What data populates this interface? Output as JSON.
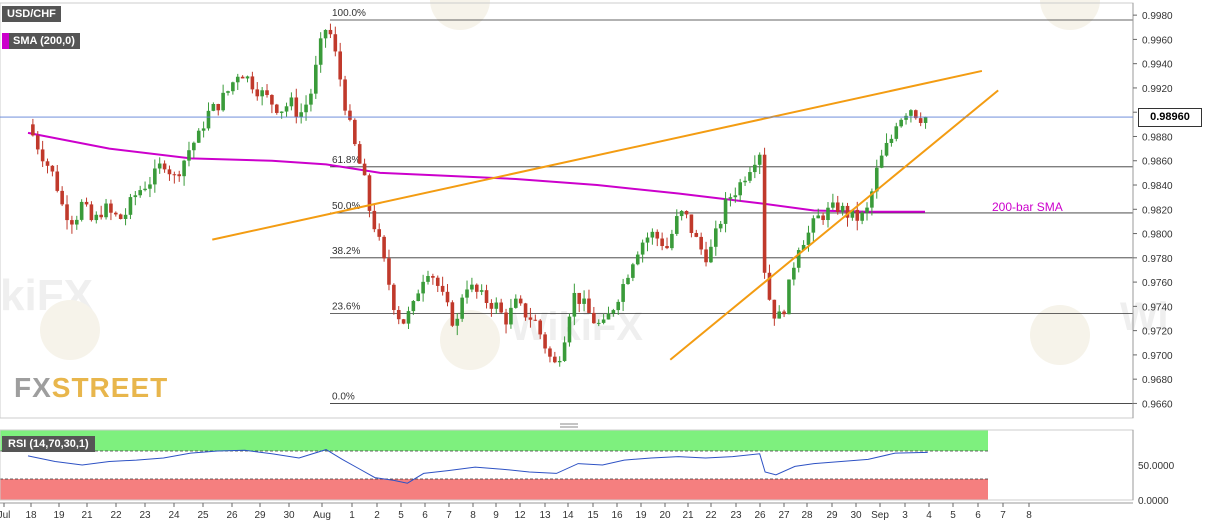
{
  "chart_data": {
    "type": "candlestick",
    "symbol": "USD/CHF",
    "indicator_label": "SMA (200,0)",
    "rsi_label": "RSI (14,70,30,1)",
    "current_price": "0.98960",
    "price_axis": {
      "ticks": [
        "0.9980",
        "0.9960",
        "0.9940",
        "0.9920",
        "0.9900",
        "0.9880",
        "0.9860",
        "0.9840",
        "0.9820",
        "0.9800",
        "0.9780",
        "0.9760",
        "0.9740",
        "0.9720",
        "0.9700",
        "0.9680",
        "0.9660"
      ],
      "ylim": [
        0.9648,
        0.999
      ]
    },
    "rsi_axis": {
      "ticks": [
        "50.0000",
        "0.0000"
      ],
      "ylim": [
        0,
        100
      ],
      "upper": 70,
      "lower": 30
    },
    "x_ticks": [
      "Jul",
      "18",
      "19",
      "21",
      "22",
      "23",
      "24",
      "25",
      "26",
      "29",
      "30",
      "Aug",
      "1",
      "2",
      "5",
      "6",
      "7",
      "8",
      "9",
      "12",
      "13",
      "14",
      "15",
      "16",
      "19",
      "20",
      "21",
      "22",
      "23",
      "26",
      "27",
      "28",
      "29",
      "30",
      "Sep",
      "3",
      "4",
      "5",
      "6",
      "7",
      "8"
    ],
    "fibonacci": [
      {
        "label": "100.0%",
        "price": 0.9976
      },
      {
        "label": "61.8%",
        "price": 0.9855
      },
      {
        "label": "50.0%",
        "price": 0.9817
      },
      {
        "label": "38.2%",
        "price": 0.978
      },
      {
        "label": "23.6%",
        "price": 0.9734
      },
      {
        "label": "0.0%",
        "price": 0.966
      }
    ],
    "trendlines": [
      {
        "name": "upper",
        "x1": 6.8,
        "y1": 0.9795,
        "x2": 35.2,
        "y2": 0.9934
      },
      {
        "name": "lower",
        "x1": 23.7,
        "y1": 0.9696,
        "x2": 35.8,
        "y2": 0.9918
      }
    ],
    "annotations": [
      "200-bar SMA"
    ],
    "close_path": [
      [
        0.0,
        0.989
      ],
      [
        0.3,
        0.9875
      ],
      [
        0.6,
        0.9862
      ],
      [
        1.0,
        0.9845
      ],
      [
        1.3,
        0.982
      ],
      [
        1.7,
        0.981
      ],
      [
        2.0,
        0.9825
      ],
      [
        2.4,
        0.9808
      ],
      [
        2.8,
        0.9822
      ],
      [
        3.1,
        0.9815
      ],
      [
        3.5,
        0.9812
      ],
      [
        3.9,
        0.983
      ],
      [
        4.2,
        0.9838
      ],
      [
        4.6,
        0.9845
      ],
      [
        5.0,
        0.986
      ],
      [
        5.4,
        0.9846
      ],
      [
        5.7,
        0.9858
      ],
      [
        6.0,
        0.9872
      ],
      [
        6.3,
        0.988
      ],
      [
        6.6,
        0.9898
      ],
      [
        7.0,
        0.9906
      ],
      [
        7.4,
        0.9918
      ],
      [
        7.8,
        0.9935
      ],
      [
        8.1,
        0.9928
      ],
      [
        8.5,
        0.9918
      ],
      [
        8.9,
        0.991
      ],
      [
        9.3,
        0.9902
      ],
      [
        9.7,
        0.9908
      ],
      [
        10.0,
        0.9897
      ],
      [
        10.4,
        0.9912
      ],
      [
        10.8,
        0.9955
      ],
      [
        11.0,
        0.997
      ],
      [
        11.2,
        0.9962
      ],
      [
        11.5,
        0.993
      ],
      [
        11.8,
        0.9895
      ],
      [
        12.1,
        0.9868
      ],
      [
        12.4,
        0.9845
      ],
      [
        12.6,
        0.982
      ],
      [
        12.9,
        0.9798
      ],
      [
        13.2,
        0.977
      ],
      [
        13.5,
        0.9742
      ],
      [
        13.8,
        0.9726
      ],
      [
        14.2,
        0.9738
      ],
      [
        14.5,
        0.9762
      ],
      [
        14.8,
        0.9772
      ],
      [
        15.1,
        0.9758
      ],
      [
        15.4,
        0.9742
      ],
      [
        15.8,
        0.9722
      ],
      [
        16.1,
        0.976
      ],
      [
        16.5,
        0.9752
      ],
      [
        16.9,
        0.9745
      ],
      [
        17.3,
        0.974
      ],
      [
        17.6,
        0.9728
      ],
      [
        18.0,
        0.9742
      ],
      [
        18.3,
        0.9735
      ],
      [
        18.7,
        0.9728
      ],
      [
        19.0,
        0.9712
      ],
      [
        19.4,
        0.969
      ],
      [
        19.7,
        0.9705
      ],
      [
        20.1,
        0.975
      ],
      [
        20.4,
        0.9745
      ],
      [
        20.8,
        0.973
      ],
      [
        21.2,
        0.9722
      ],
      [
        21.6,
        0.974
      ],
      [
        22.0,
        0.976
      ],
      [
        22.3,
        0.9778
      ],
      [
        22.6,
        0.9792
      ],
      [
        23.0,
        0.98
      ],
      [
        23.3,
        0.9795
      ],
      [
        23.6,
        0.9788
      ],
      [
        23.9,
        0.981
      ],
      [
        24.2,
        0.9818
      ],
      [
        24.5,
        0.9802
      ],
      [
        24.8,
        0.9788
      ],
      [
        25.1,
        0.978
      ],
      [
        25.4,
        0.98
      ],
      [
        25.8,
        0.9828
      ],
      [
        26.2,
        0.9838
      ],
      [
        26.5,
        0.985
      ],
      [
        26.8,
        0.9862
      ],
      [
        27.0,
        0.9868
      ],
      [
        27.2,
        0.976
      ],
      [
        27.5,
        0.9735
      ],
      [
        27.8,
        0.973
      ],
      [
        28.1,
        0.9758
      ],
      [
        28.4,
        0.979
      ],
      [
        28.8,
        0.98
      ],
      [
        29.1,
        0.9812
      ],
      [
        29.5,
        0.9818
      ],
      [
        29.9,
        0.9822
      ],
      [
        30.3,
        0.9815
      ],
      [
        30.7,
        0.9812
      ],
      [
        31.0,
        0.982
      ],
      [
        31.3,
        0.985
      ],
      [
        31.6,
        0.9868
      ],
      [
        31.9,
        0.988
      ],
      [
        32.1,
        0.9898
      ],
      [
        32.3,
        0.9896
      ],
      [
        32.5,
        0.9906
      ],
      [
        32.7,
        0.99
      ],
      [
        33.0,
        0.9895
      ],
      [
        33.2,
        0.9896
      ]
    ],
    "sma_path": [
      [
        0.0,
        0.9883
      ],
      [
        3.0,
        0.987
      ],
      [
        6.0,
        0.9862
      ],
      [
        9.0,
        0.986
      ],
      [
        11.0,
        0.9857
      ],
      [
        13.0,
        0.985
      ],
      [
        15.0,
        0.9848
      ],
      [
        18.0,
        0.9845
      ],
      [
        21.0,
        0.984
      ],
      [
        24.0,
        0.9833
      ],
      [
        27.0,
        0.9825
      ],
      [
        29.0,
        0.9819
      ],
      [
        31.0,
        0.9818
      ],
      [
        33.1,
        0.9818
      ]
    ],
    "rsi_path": [
      [
        0.0,
        63
      ],
      [
        1.0,
        55
      ],
      [
        2.0,
        50
      ],
      [
        3.0,
        55
      ],
      [
        4.0,
        57
      ],
      [
        5.0,
        60
      ],
      [
        6.0,
        67
      ],
      [
        7.0,
        70
      ],
      [
        8.0,
        71
      ],
      [
        9.0,
        66
      ],
      [
        10.0,
        60
      ],
      [
        11.0,
        72
      ],
      [
        11.6,
        58
      ],
      [
        12.2,
        45
      ],
      [
        12.8,
        32
      ],
      [
        13.5,
        28
      ],
      [
        14.0,
        24
      ],
      [
        14.6,
        38
      ],
      [
        15.5,
        42
      ],
      [
        16.5,
        47
      ],
      [
        17.5,
        44
      ],
      [
        18.5,
        40
      ],
      [
        19.5,
        38
      ],
      [
        20.3,
        52
      ],
      [
        21.2,
        50
      ],
      [
        22.0,
        57
      ],
      [
        23.0,
        60
      ],
      [
        24.0,
        62
      ],
      [
        25.0,
        60
      ],
      [
        26.0,
        62
      ],
      [
        27.0,
        66
      ],
      [
        27.2,
        40
      ],
      [
        27.6,
        36
      ],
      [
        28.3,
        48
      ],
      [
        29.0,
        52
      ],
      [
        30.0,
        55
      ],
      [
        31.0,
        58
      ],
      [
        32.0,
        67
      ],
      [
        33.2,
        68
      ]
    ]
  }
}
